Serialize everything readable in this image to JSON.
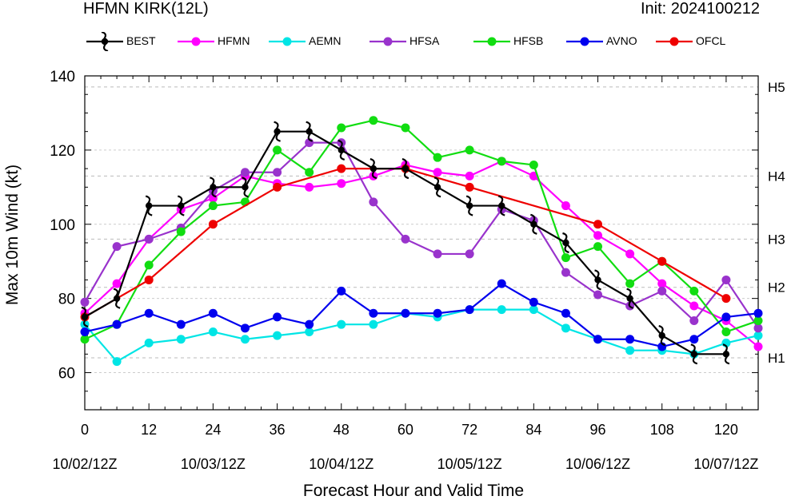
{
  "header": {
    "title": "HFMN KIRK(12L)",
    "init": "Init: 2024100212"
  },
  "chart_data": {
    "type": "line",
    "title": "HFMN KIRK(12L)",
    "subtitle": "Init: 2024100212",
    "xlabel": "Forecast Hour and Valid Time",
    "ylabel": "Max 10m Wind (kt)",
    "xlim": [
      0,
      126
    ],
    "ylim": [
      50,
      140
    ],
    "x_ticks": [
      0,
      12,
      24,
      36,
      48,
      60,
      72,
      84,
      96,
      108,
      120
    ],
    "x_tick_labels": [
      "0",
      "12",
      "24",
      "36",
      "48",
      "60",
      "72",
      "84",
      "96",
      "108",
      "120"
    ],
    "date_tick_labels": [
      {
        "x": 0,
        "label": "10/02/12Z"
      },
      {
        "x": 24,
        "label": "10/03/12Z"
      },
      {
        "x": 48,
        "label": "10/04/12Z"
      },
      {
        "x": 72,
        "label": "10/05/12Z"
      },
      {
        "x": 96,
        "label": "10/06/12Z"
      },
      {
        "x": 120,
        "label": "10/07/12Z"
      }
    ],
    "y_ticks": [
      60,
      80,
      100,
      120,
      140
    ],
    "category_lines": [
      {
        "value": 64,
        "label": "H1"
      },
      {
        "value": 83,
        "label": "H2"
      },
      {
        "value": 96,
        "label": "H3"
      },
      {
        "value": 113,
        "label": "H4"
      },
      {
        "value": 137,
        "label": "H5"
      }
    ],
    "legend_position": "top",
    "series": [
      {
        "name": "BEST",
        "color": "#000000",
        "marker": "hurricane",
        "x": [
          0,
          6,
          12,
          18,
          24,
          30,
          36,
          42,
          48,
          54,
          60,
          66,
          72,
          78,
          84,
          90,
          96,
          102,
          108,
          114,
          120
        ],
        "values": [
          75,
          80,
          105,
          105,
          110,
          110,
          125,
          125,
          120,
          115,
          115,
          110,
          105,
          105,
          100,
          95,
          85,
          80,
          70,
          65,
          65
        ]
      },
      {
        "name": "HFMN",
        "color": "#ff00ff",
        "marker": "circle",
        "x": [
          0,
          6,
          12,
          18,
          24,
          30,
          36,
          42,
          48,
          54,
          60,
          66,
          72,
          78,
          84,
          90,
          96,
          102,
          108,
          114,
          120,
          126
        ],
        "values": [
          76,
          84,
          96,
          104,
          107,
          113,
          111,
          110,
          111,
          113,
          116,
          114,
          113,
          117,
          113,
          105,
          97,
          92,
          84,
          78,
          74,
          67
        ]
      },
      {
        "name": "AEMN",
        "color": "#00e5e5",
        "marker": "circle",
        "x": [
          0,
          6,
          12,
          18,
          24,
          30,
          36,
          42,
          48,
          54,
          60,
          66,
          72,
          78,
          84,
          90,
          96,
          102,
          108,
          114,
          120,
          126
        ],
        "values": [
          73,
          63,
          68,
          69,
          71,
          69,
          70,
          71,
          73,
          73,
          76,
          75,
          77,
          77,
          77,
          72,
          69,
          66,
          66,
          65,
          68,
          70
        ]
      },
      {
        "name": "HFSA",
        "color": "#9933cc",
        "marker": "circle",
        "x": [
          0,
          6,
          12,
          18,
          24,
          30,
          36,
          42,
          48,
          54,
          60,
          66,
          72,
          78,
          84,
          90,
          96,
          102,
          108,
          114,
          120,
          126
        ],
        "values": [
          79,
          94,
          96,
          99,
          109,
          114,
          114,
          122,
          122,
          106,
          96,
          92,
          92,
          104,
          101,
          87,
          81,
          78,
          82,
          74,
          85,
          72
        ]
      },
      {
        "name": "HFSB",
        "color": "#11dd11",
        "marker": "circle",
        "x": [
          0,
          6,
          12,
          18,
          24,
          30,
          36,
          42,
          48,
          54,
          60,
          66,
          72,
          78,
          84,
          90,
          96,
          102,
          108,
          114,
          120,
          126
        ],
        "values": [
          69,
          73,
          89,
          98,
          105,
          106,
          120,
          114,
          126,
          128,
          126,
          118,
          120,
          117,
          116,
          91,
          94,
          84,
          90,
          82,
          71,
          74
        ]
      },
      {
        "name": "AVNO",
        "color": "#0000ee",
        "marker": "circle",
        "x": [
          0,
          6,
          12,
          18,
          24,
          30,
          36,
          42,
          48,
          54,
          60,
          66,
          72,
          78,
          84,
          90,
          96,
          102,
          108,
          114,
          120,
          126
        ],
        "values": [
          71,
          73,
          76,
          73,
          76,
          72,
          75,
          73,
          82,
          76,
          76,
          76,
          77,
          84,
          79,
          76,
          69,
          69,
          67,
          69,
          75,
          76
        ]
      },
      {
        "name": "OFCL",
        "color": "#ee0000",
        "marker": "circle",
        "x": [
          0,
          12,
          24,
          36,
          48,
          60,
          72,
          96,
          108,
          120
        ],
        "values": [
          75,
          85,
          100,
          110,
          115,
          115,
          110,
          100,
          90,
          80
        ]
      }
    ]
  }
}
